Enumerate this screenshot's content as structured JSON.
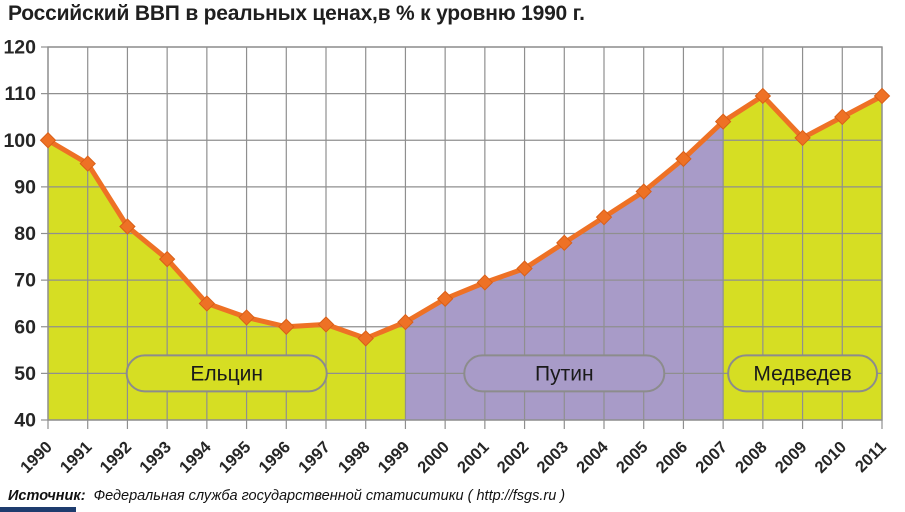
{
  "title": "Российский ВВП в реальных ценах,в % к уровню 1990 г.",
  "source": {
    "label": "Источник:",
    "text": "Федеральная служба государственной статиситики ( http://fsgs.ru )"
  },
  "colors": {
    "line": "#ee7125",
    "marker_stroke": "#d95f18",
    "grid": "#8f8f8f",
    "axis_text": "#262626",
    "pill_stroke": "#8c8c8c",
    "pill_text": "#1a1a1a",
    "yeltsin_fill": "#d6de23",
    "putin_fill": "#a89bc8",
    "bottom_bar": "#1e3c6e"
  },
  "chart_data": {
    "type": "area",
    "title": "Российский ВВП в реальных ценах,в % к уровню 1990 г.",
    "categories": [
      "1990",
      "1991",
      "1992",
      "1993",
      "1994",
      "1995",
      "1996",
      "1997",
      "1998",
      "1999",
      "2000",
      "2001",
      "2002",
      "2003",
      "2004",
      "2005",
      "2006",
      "2007",
      "2008",
      "2009",
      "2010",
      "2011"
    ],
    "values": [
      100,
      95,
      81.5,
      74.5,
      65,
      62,
      60,
      60.5,
      57.5,
      61,
      66,
      69.5,
      72.5,
      78,
      83.5,
      89,
      96,
      104,
      109.5,
      100.5,
      105,
      109.5
    ],
    "xlabel": "",
    "ylabel": "",
    "ylim": [
      40,
      120
    ],
    "ytick_step": 10,
    "grid": true,
    "legend_position": "none",
    "line_color": "#ee7125",
    "regions": [
      {
        "label": "Ельцин",
        "start": "1990",
        "end": "1999",
        "color": "#d6de23",
        "label_value": 50
      },
      {
        "label": "Путин",
        "start": "1999",
        "end": "2007",
        "color": "#a89bc8",
        "label_value": 50
      },
      {
        "label": "Медведев",
        "start": "2007",
        "end": "2011",
        "color": "#d6de23",
        "label_value": 50
      }
    ]
  }
}
